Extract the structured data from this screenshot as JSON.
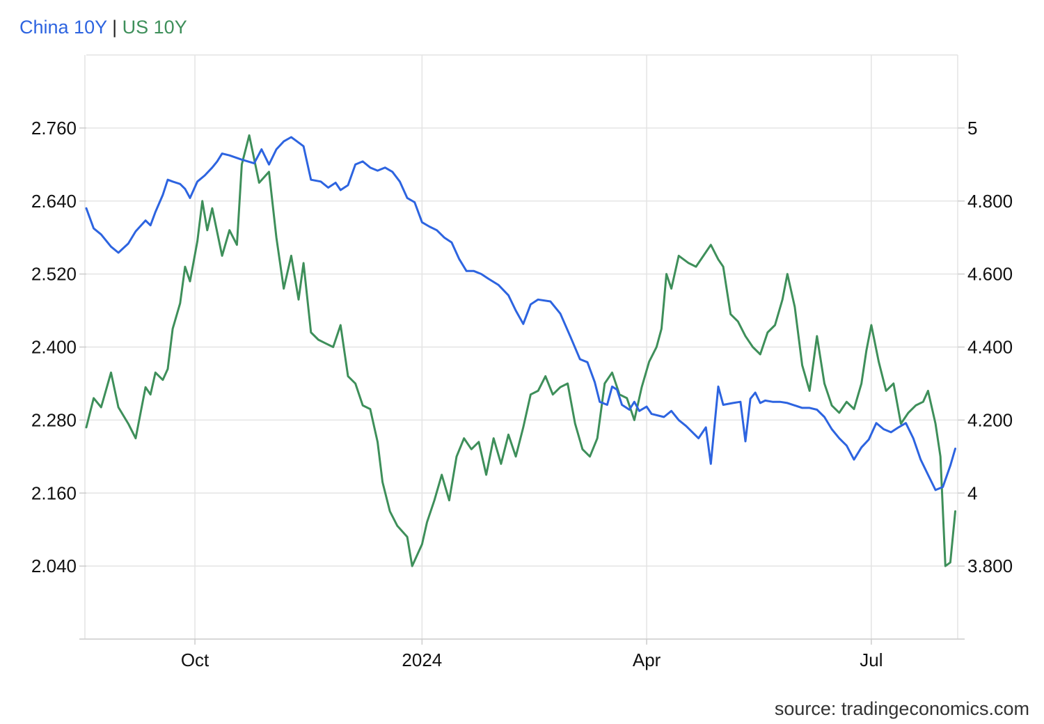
{
  "legend": {
    "china_label": "China 10Y",
    "separator": "|",
    "us_label": "US 10Y"
  },
  "source": "source: tradingeconomics.com",
  "colors": {
    "china": "#2d64e0",
    "us": "#3e8f5a",
    "grid": "#e4e4e4",
    "axis": "#cccccc"
  },
  "chart_data": {
    "type": "line",
    "title": "",
    "xlabel": "",
    "ylabel": "",
    "grid": true,
    "legend_placement": "top-left",
    "x_ticks": [
      {
        "label": "Oct",
        "date": "2023-10-01"
      },
      {
        "label": "2024",
        "date": "2024-01-01"
      },
      {
        "label": "Apr",
        "date": "2024-04-01"
      },
      {
        "label": "Jul",
        "date": "2024-07-01"
      }
    ],
    "xlim": [
      "2023-08-18",
      "2024-08-05"
    ],
    "y_left": {
      "ticks": [
        "2.040",
        "2.160",
        "2.280",
        "2.400",
        "2.520",
        "2.640",
        "2.760"
      ],
      "ylim": [
        1.92,
        2.88
      ]
    },
    "y_right": {
      "ticks": [
        "3.800",
        "4",
        "4.200",
        "4.400",
        "4.600",
        "4.800",
        "5"
      ],
      "ylim": [
        3.6,
        5.2
      ]
    },
    "series": [
      {
        "name": "China 10Y",
        "axis": "left",
        "points": [
          [
            "2023-08-18",
            2.628
          ],
          [
            "2023-08-21",
            2.595
          ],
          [
            "2023-08-24",
            2.585
          ],
          [
            "2023-08-28",
            2.565
          ],
          [
            "2023-08-31",
            2.555
          ],
          [
            "2023-09-04",
            2.57
          ],
          [
            "2023-09-07",
            2.59
          ],
          [
            "2023-09-11",
            2.608
          ],
          [
            "2023-09-13",
            2.6
          ],
          [
            "2023-09-15",
            2.622
          ],
          [
            "2023-09-18",
            2.65
          ],
          [
            "2023-09-20",
            2.675
          ],
          [
            "2023-09-22",
            2.672
          ],
          [
            "2023-09-25",
            2.668
          ],
          [
            "2023-09-27",
            2.66
          ],
          [
            "2023-09-29",
            2.645
          ],
          [
            "2023-10-02",
            2.672
          ],
          [
            "2023-10-05",
            2.682
          ],
          [
            "2023-10-08",
            2.695
          ],
          [
            "2023-10-10",
            2.705
          ],
          [
            "2023-10-12",
            2.718
          ],
          [
            "2023-10-15",
            2.715
          ],
          [
            "2023-10-20",
            2.708
          ],
          [
            "2023-10-25",
            2.702
          ],
          [
            "2023-10-28",
            2.725
          ],
          [
            "2023-10-31",
            2.7
          ],
          [
            "2023-11-03",
            2.725
          ],
          [
            "2023-11-06",
            2.738
          ],
          [
            "2023-11-09",
            2.745
          ],
          [
            "2023-11-11",
            2.739
          ],
          [
            "2023-11-14",
            2.73
          ],
          [
            "2023-11-17",
            2.675
          ],
          [
            "2023-11-21",
            2.672
          ],
          [
            "2023-11-24",
            2.662
          ],
          [
            "2023-11-27",
            2.67
          ],
          [
            "2023-11-29",
            2.658
          ],
          [
            "2023-12-02",
            2.666
          ],
          [
            "2023-12-05",
            2.7
          ],
          [
            "2023-12-08",
            2.705
          ],
          [
            "2023-12-11",
            2.695
          ],
          [
            "2023-12-14",
            2.69
          ],
          [
            "2023-12-17",
            2.695
          ],
          [
            "2023-12-20",
            2.688
          ],
          [
            "2023-12-23",
            2.672
          ],
          [
            "2023-12-26",
            2.645
          ],
          [
            "2023-12-29",
            2.638
          ],
          [
            "2024-01-01",
            2.605
          ],
          [
            "2024-01-04",
            2.598
          ],
          [
            "2024-01-07",
            2.592
          ],
          [
            "2024-01-10",
            2.58
          ],
          [
            "2024-01-13",
            2.572
          ],
          [
            "2024-01-16",
            2.545
          ],
          [
            "2024-01-19",
            2.525
          ],
          [
            "2024-01-22",
            2.525
          ],
          [
            "2024-01-25",
            2.52
          ],
          [
            "2024-01-28",
            2.512
          ],
          [
            "2024-02-01",
            2.502
          ],
          [
            "2024-02-05",
            2.485
          ],
          [
            "2024-02-08",
            2.46
          ],
          [
            "2024-02-11",
            2.438
          ],
          [
            "2024-02-14",
            2.47
          ],
          [
            "2024-02-17",
            2.478
          ],
          [
            "2024-02-22",
            2.475
          ],
          [
            "2024-02-26",
            2.455
          ],
          [
            "2024-03-01",
            2.418
          ],
          [
            "2024-03-05",
            2.38
          ],
          [
            "2024-03-08",
            2.375
          ],
          [
            "2024-03-11",
            2.342
          ],
          [
            "2024-03-13",
            2.31
          ],
          [
            "2024-03-16",
            2.305
          ],
          [
            "2024-03-18",
            2.335
          ],
          [
            "2024-03-20",
            2.33
          ],
          [
            "2024-03-22",
            2.305
          ],
          [
            "2024-03-25",
            2.297
          ],
          [
            "2024-03-27",
            2.31
          ],
          [
            "2024-03-29",
            2.295
          ],
          [
            "2024-04-01",
            2.302
          ],
          [
            "2024-04-03",
            2.29
          ],
          [
            "2024-04-08",
            2.285
          ],
          [
            "2024-04-11",
            2.295
          ],
          [
            "2024-04-14",
            2.28
          ],
          [
            "2024-04-17",
            2.27
          ],
          [
            "2024-04-20",
            2.258
          ],
          [
            "2024-04-22",
            2.25
          ],
          [
            "2024-04-25",
            2.268
          ],
          [
            "2024-04-27",
            2.208
          ],
          [
            "2024-04-30",
            2.335
          ],
          [
            "2024-05-02",
            2.305
          ],
          [
            "2024-05-06",
            2.308
          ],
          [
            "2024-05-09",
            2.31
          ],
          [
            "2024-05-11",
            2.245
          ],
          [
            "2024-05-13",
            2.315
          ],
          [
            "2024-05-15",
            2.325
          ],
          [
            "2024-05-17",
            2.308
          ],
          [
            "2024-05-19",
            2.312
          ],
          [
            "2024-05-22",
            2.31
          ],
          [
            "2024-05-25",
            2.31
          ],
          [
            "2024-05-28",
            2.308
          ],
          [
            "2024-05-31",
            2.304
          ],
          [
            "2024-06-03",
            2.3
          ],
          [
            "2024-06-06",
            2.3
          ],
          [
            "2024-06-09",
            2.297
          ],
          [
            "2024-06-12",
            2.285
          ],
          [
            "2024-06-15",
            2.265
          ],
          [
            "2024-06-18",
            2.25
          ],
          [
            "2024-06-21",
            2.238
          ],
          [
            "2024-06-24",
            2.215
          ],
          [
            "2024-06-27",
            2.235
          ],
          [
            "2024-06-30",
            2.248
          ],
          [
            "2024-07-03",
            2.275
          ],
          [
            "2024-07-06",
            2.265
          ],
          [
            "2024-07-09",
            2.26
          ],
          [
            "2024-07-12",
            2.268
          ],
          [
            "2024-07-15",
            2.275
          ],
          [
            "2024-07-18",
            2.25
          ],
          [
            "2024-07-21",
            2.215
          ],
          [
            "2024-07-24",
            2.19
          ],
          [
            "2024-07-27",
            2.165
          ],
          [
            "2024-07-30",
            2.17
          ],
          [
            "2024-08-02",
            2.205
          ],
          [
            "2024-08-04",
            2.233
          ]
        ]
      },
      {
        "name": "US 10Y",
        "axis": "right",
        "points": [
          [
            "2023-08-18",
            4.18
          ],
          [
            "2023-08-21",
            4.26
          ],
          [
            "2023-08-24",
            4.235
          ],
          [
            "2023-08-28",
            4.33
          ],
          [
            "2023-08-31",
            4.235
          ],
          [
            "2023-09-04",
            4.19
          ],
          [
            "2023-09-07",
            4.15
          ],
          [
            "2023-09-11",
            4.29
          ],
          [
            "2023-09-13",
            4.27
          ],
          [
            "2023-09-15",
            4.33
          ],
          [
            "2023-09-18",
            4.31
          ],
          [
            "2023-09-20",
            4.34
          ],
          [
            "2023-09-22",
            4.45
          ],
          [
            "2023-09-25",
            4.52
          ],
          [
            "2023-09-27",
            4.62
          ],
          [
            "2023-09-29",
            4.58
          ],
          [
            "2023-10-02",
            4.69
          ],
          [
            "2023-10-04",
            4.8
          ],
          [
            "2023-10-06",
            4.72
          ],
          [
            "2023-10-08",
            4.78
          ],
          [
            "2023-10-12",
            4.65
          ],
          [
            "2023-10-15",
            4.72
          ],
          [
            "2023-10-18",
            4.68
          ],
          [
            "2023-10-20",
            4.9
          ],
          [
            "2023-10-23",
            4.98
          ],
          [
            "2023-10-27",
            4.85
          ],
          [
            "2023-10-31",
            4.88
          ],
          [
            "2023-11-03",
            4.7
          ],
          [
            "2023-11-06",
            4.56
          ],
          [
            "2023-11-09",
            4.65
          ],
          [
            "2023-11-12",
            4.53
          ],
          [
            "2023-11-14",
            4.63
          ],
          [
            "2023-11-17",
            4.44
          ],
          [
            "2023-11-20",
            4.42
          ],
          [
            "2023-11-23",
            4.41
          ],
          [
            "2023-11-26",
            4.4
          ],
          [
            "2023-11-29",
            4.46
          ],
          [
            "2023-12-02",
            4.32
          ],
          [
            "2023-12-05",
            4.3
          ],
          [
            "2023-12-08",
            4.24
          ],
          [
            "2023-12-11",
            4.23
          ],
          [
            "2023-12-14",
            4.14
          ],
          [
            "2023-12-16",
            4.03
          ],
          [
            "2023-12-19",
            3.95
          ],
          [
            "2023-12-22",
            3.91
          ],
          [
            "2023-12-26",
            3.88
          ],
          [
            "2023-12-28",
            3.8
          ],
          [
            "2024-01-01",
            3.86
          ],
          [
            "2024-01-03",
            3.92
          ],
          [
            "2024-01-06",
            3.98
          ],
          [
            "2024-01-09",
            4.05
          ],
          [
            "2024-01-12",
            3.98
          ],
          [
            "2024-01-15",
            4.1
          ],
          [
            "2024-01-18",
            4.15
          ],
          [
            "2024-01-21",
            4.12
          ],
          [
            "2024-01-24",
            4.14
          ],
          [
            "2024-01-27",
            4.05
          ],
          [
            "2024-01-30",
            4.15
          ],
          [
            "2024-02-02",
            4.08
          ],
          [
            "2024-02-05",
            4.16
          ],
          [
            "2024-02-08",
            4.1
          ],
          [
            "2024-02-11",
            4.18
          ],
          [
            "2024-02-14",
            4.27
          ],
          [
            "2024-02-17",
            4.28
          ],
          [
            "2024-02-20",
            4.32
          ],
          [
            "2024-02-23",
            4.27
          ],
          [
            "2024-02-26",
            4.29
          ],
          [
            "2024-02-29",
            4.3
          ],
          [
            "2024-03-03",
            4.19
          ],
          [
            "2024-03-06",
            4.12
          ],
          [
            "2024-03-09",
            4.1
          ],
          [
            "2024-03-12",
            4.15
          ],
          [
            "2024-03-15",
            4.3
          ],
          [
            "2024-03-18",
            4.33
          ],
          [
            "2024-03-21",
            4.27
          ],
          [
            "2024-03-24",
            4.26
          ],
          [
            "2024-03-27",
            4.2
          ],
          [
            "2024-03-30",
            4.29
          ],
          [
            "2024-04-02",
            4.36
          ],
          [
            "2024-04-05",
            4.4
          ],
          [
            "2024-04-07",
            4.45
          ],
          [
            "2024-04-09",
            4.6
          ],
          [
            "2024-04-11",
            4.56
          ],
          [
            "2024-04-14",
            4.65
          ],
          [
            "2024-04-16",
            4.64
          ],
          [
            "2024-04-18",
            4.63
          ],
          [
            "2024-04-21",
            4.62
          ],
          [
            "2024-04-24",
            4.65
          ],
          [
            "2024-04-27",
            4.68
          ],
          [
            "2024-04-30",
            4.64
          ],
          [
            "2024-05-02",
            4.62
          ],
          [
            "2024-05-05",
            4.49
          ],
          [
            "2024-05-08",
            4.47
          ],
          [
            "2024-05-11",
            4.43
          ],
          [
            "2024-05-14",
            4.4
          ],
          [
            "2024-05-17",
            4.38
          ],
          [
            "2024-05-20",
            4.44
          ],
          [
            "2024-05-23",
            4.46
          ],
          [
            "2024-05-26",
            4.53
          ],
          [
            "2024-05-28",
            4.6
          ],
          [
            "2024-05-31",
            4.51
          ],
          [
            "2024-06-03",
            4.35
          ],
          [
            "2024-06-06",
            4.28
          ],
          [
            "2024-06-09",
            4.43
          ],
          [
            "2024-06-12",
            4.3
          ],
          [
            "2024-06-15",
            4.24
          ],
          [
            "2024-06-18",
            4.22
          ],
          [
            "2024-06-21",
            4.25
          ],
          [
            "2024-06-24",
            4.23
          ],
          [
            "2024-06-27",
            4.3
          ],
          [
            "2024-06-29",
            4.39
          ],
          [
            "2024-07-01",
            4.46
          ],
          [
            "2024-07-04",
            4.36
          ],
          [
            "2024-07-07",
            4.28
          ],
          [
            "2024-07-10",
            4.3
          ],
          [
            "2024-07-13",
            4.19
          ],
          [
            "2024-07-16",
            4.22
          ],
          [
            "2024-07-19",
            4.24
          ],
          [
            "2024-07-22",
            4.25
          ],
          [
            "2024-07-24",
            4.28
          ],
          [
            "2024-07-27",
            4.19
          ],
          [
            "2024-07-29",
            4.1
          ],
          [
            "2024-07-31",
            3.8
          ],
          [
            "2024-08-02",
            3.81
          ],
          [
            "2024-08-04",
            3.95
          ]
        ]
      }
    ]
  }
}
